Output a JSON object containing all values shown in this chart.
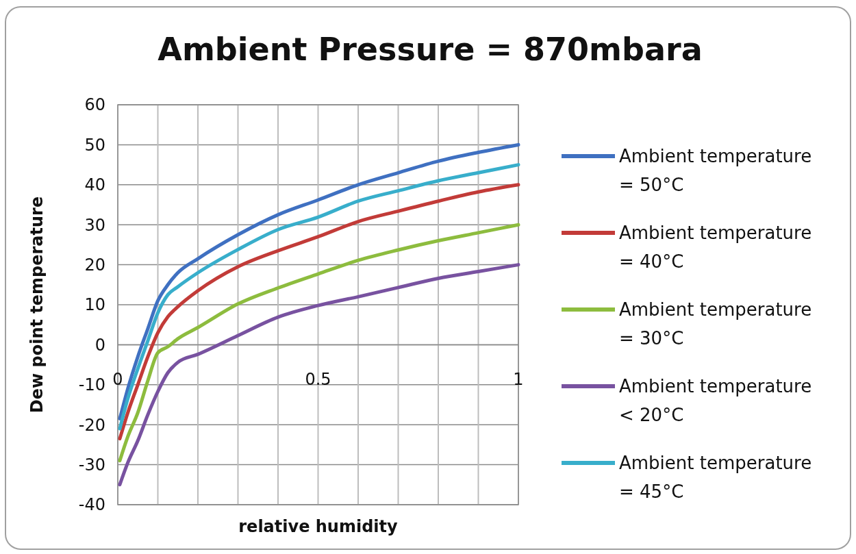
{
  "chart_data": {
    "type": "line",
    "title": "Ambient Pressure = 870mbara",
    "xlabel": "relative humidity",
    "ylabel": "Dew point temperature",
    "xlim": [
      0,
      1
    ],
    "xticks": [
      0,
      {
        "value": 0.1,
        "label": null
      },
      {
        "value": 0.2,
        "label": null
      },
      {
        "value": 0.3,
        "label": null
      },
      {
        "value": 0.4,
        "label": null
      },
      0.5,
      {
        "value": 0.6,
        "label": null
      },
      {
        "value": 0.7,
        "label": null
      },
      {
        "value": 0.8,
        "label": null
      },
      {
        "value": 0.9,
        "label": null
      },
      1
    ],
    "ylim": [
      -40,
      60
    ],
    "yticks": [
      -40,
      -30,
      -20,
      -10,
      0,
      10,
      20,
      30,
      40,
      50,
      60
    ],
    "grid": true,
    "legend": "right",
    "marker": "none",
    "line_style": "solid",
    "x": [
      0.005,
      0.025,
      0.05,
      0.075,
      0.1,
      0.125,
      0.15,
      0.2,
      0.3,
      0.4,
      0.5,
      0.6,
      0.7,
      0.8,
      0.9,
      1
    ],
    "series": [
      {
        "name": "Ambient temperature = 50°C",
        "color": "#3f70c1",
        "values": [
          -18.5,
          -11,
          -3,
          4,
          11,
          15,
          18,
          21.5,
          27.5,
          32.5,
          36.2,
          40,
          43,
          45.9,
          48.1,
          50
        ]
      },
      {
        "name": "Ambient temperature = 40°C",
        "color": "#c23b38",
        "values": [
          -23.5,
          -17,
          -10,
          -3,
          3,
          7,
          9.5,
          13.5,
          19.5,
          23.5,
          27,
          30.8,
          33.4,
          35.9,
          38.2,
          40
        ]
      },
      {
        "name": "Ambient temperature = 30°C",
        "color": "#8dbc3e",
        "values": [
          -29,
          -23,
          -17,
          -9,
          -2,
          -0.5,
          1.5,
          4.3,
          10.2,
          14.2,
          17.7,
          21.1,
          23.7,
          26,
          28,
          30
        ]
      },
      {
        "name": "Ambient temperature < 20°C",
        "color": "#7852a0",
        "values": [
          -35,
          -29.5,
          -24,
          -17.5,
          -11.7,
          -7,
          -4.4,
          -2.4,
          2.3,
          6.9,
          9.8,
          12,
          14.3,
          16.6,
          18.3,
          20
        ]
      },
      {
        "name": "Ambient temperature = 45°C",
        "color": "#38aecb",
        "values": [
          -21,
          -13.5,
          -6,
          1,
          8,
          12.5,
          14.5,
          18,
          23.8,
          28.8,
          31.9,
          35.9,
          38.5,
          41,
          43,
          45
        ]
      }
    ]
  }
}
